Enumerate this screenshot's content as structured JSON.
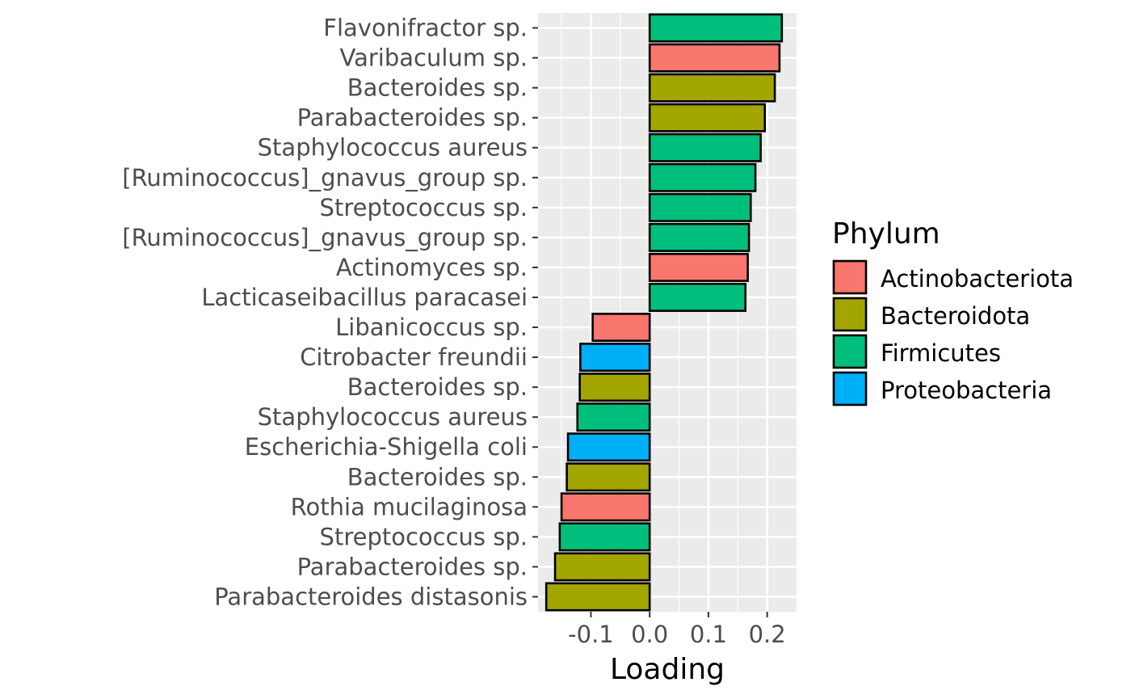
{
  "chart_data": {
    "type": "bar",
    "orientation": "horizontal",
    "title": "",
    "xlabel": "Loading",
    "ylabel": "",
    "xlim": [
      -0.19,
      0.25
    ],
    "x_ticks": [
      -0.1,
      0.0,
      0.1,
      0.2
    ],
    "x_tick_labels": [
      "-0.1",
      "0.0",
      "0.1",
      "0.2"
    ],
    "grid": true,
    "legend_position": "right",
    "legend": {
      "title": "Phylum",
      "entries": [
        {
          "name": "Actinobacteriota",
          "color": "#F8766D"
        },
        {
          "name": "Bacteroidota",
          "color": "#A3A500"
        },
        {
          "name": "Firmicutes",
          "color": "#00BF7D"
        },
        {
          "name": "Proteobacteria",
          "color": "#00B0F6"
        }
      ]
    },
    "categories": [
      "Flavonifractor sp.",
      "Varibaculum sp.",
      "Bacteroides sp.",
      "Parabacteroides sp.",
      "Staphylococcus aureus",
      "[Ruminococcus]_gnavus_group sp.",
      "Streptococcus sp.",
      "[Ruminococcus]_gnavus_group sp.",
      "Actinomyces sp.",
      "Lacticaseibacillus paracasei",
      "Libanicoccus sp.",
      "Citrobacter freundii",
      "Bacteroides sp.",
      "Staphylococcus aureus",
      "Escherichia-Shigella coli",
      "Bacteroides sp.",
      "Rothia mucilaginosa",
      "Streptococcus sp.",
      "Parabacteroides sp.",
      "Parabacteroides distasonis"
    ],
    "values": [
      0.225,
      0.221,
      0.213,
      0.196,
      0.189,
      0.18,
      0.172,
      0.169,
      0.167,
      0.163,
      -0.097,
      -0.118,
      -0.119,
      -0.123,
      -0.139,
      -0.141,
      -0.15,
      -0.153,
      -0.161,
      -0.176
    ],
    "phylum": [
      "Firmicutes",
      "Actinobacteriota",
      "Bacteroidota",
      "Bacteroidota",
      "Firmicutes",
      "Firmicutes",
      "Firmicutes",
      "Firmicutes",
      "Actinobacteriota",
      "Firmicutes",
      "Actinobacteriota",
      "Proteobacteria",
      "Bacteroidota",
      "Firmicutes",
      "Proteobacteria",
      "Bacteroidota",
      "Actinobacteriota",
      "Firmicutes",
      "Bacteroidota",
      "Bacteroidota"
    ]
  }
}
